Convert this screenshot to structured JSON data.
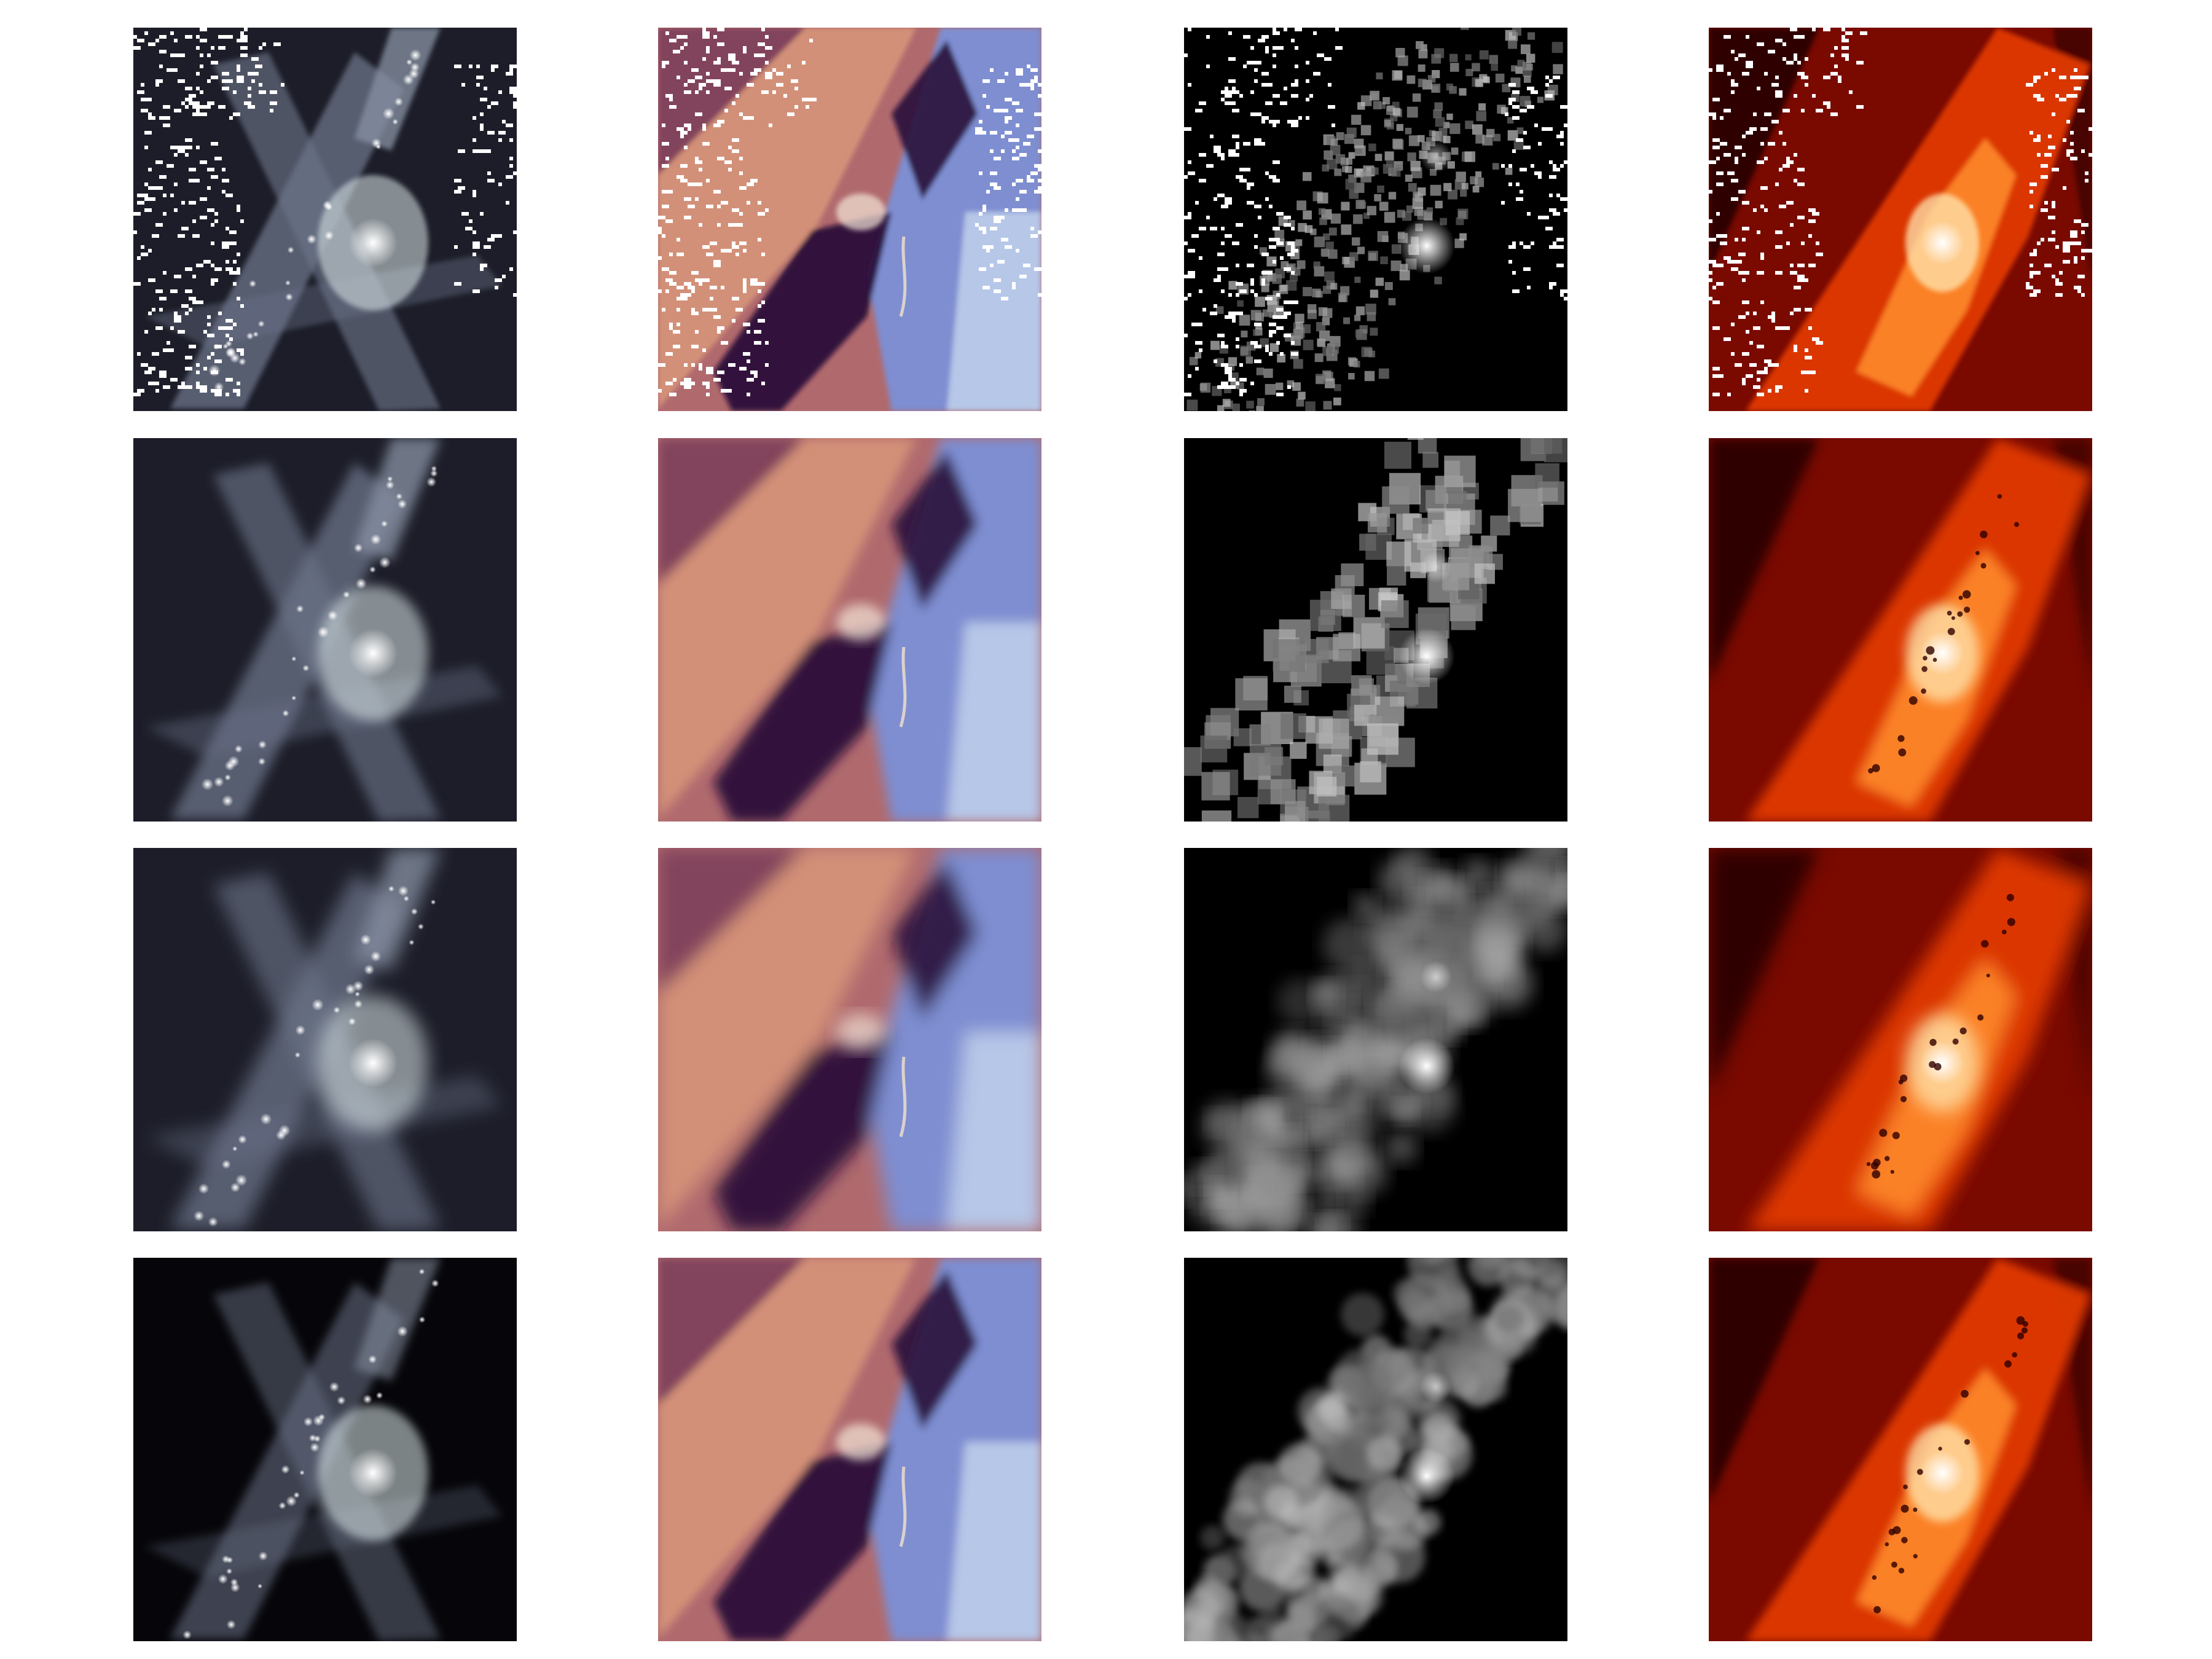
{
  "figure": {
    "title": "",
    "grid": {
      "rows": 4,
      "cols": 4,
      "axes_visible": false
    },
    "rows": [
      {
        "variant": "pixelated",
        "panels": [
          {
            "colormap": "bone",
            "subject": "x-shaped-filament-structure",
            "masked_pixels": true
          },
          {
            "colormap": "twilight-shifted",
            "subject": "diagonal-velocity-field",
            "masked_pixels": true
          },
          {
            "colormap": "gray",
            "subject": "diagonal-particle-band",
            "masked_pixels": true
          },
          {
            "colormap": "gist-heat",
            "subject": "diagonal-temperature-band",
            "masked_pixels": true
          }
        ]
      },
      {
        "variant": "blocky",
        "panels": [
          {
            "colormap": "bone",
            "subject": "x-shaped-filament-structure"
          },
          {
            "colormap": "twilight-shifted",
            "subject": "diagonal-velocity-field"
          },
          {
            "colormap": "gray",
            "subject": "diagonal-particle-band"
          },
          {
            "colormap": "gist-heat",
            "subject": "diagonal-temperature-band"
          }
        ]
      },
      {
        "variant": "smooth",
        "panels": [
          {
            "colormap": "bone",
            "subject": "x-shaped-filament-structure"
          },
          {
            "colormap": "twilight-shifted",
            "subject": "diagonal-velocity-field"
          },
          {
            "colormap": "gray",
            "subject": "diagonal-particle-band"
          },
          {
            "colormap": "gist-heat",
            "subject": "diagonal-temperature-band"
          }
        ]
      },
      {
        "variant": "sharp",
        "panels": [
          {
            "colormap": "bone",
            "subject": "x-shaped-filament-structure"
          },
          {
            "colormap": "twilight-shifted",
            "subject": "diagonal-velocity-field"
          },
          {
            "colormap": "gray",
            "subject": "diagonal-particle-band"
          },
          {
            "colormap": "gist-heat",
            "subject": "diagonal-temperature-band"
          }
        ]
      }
    ],
    "colors": {
      "background": "#ffffff",
      "bone_dark": "#1c1d28",
      "bone_mid": "#6b7388",
      "bone_light": "#dde9ea",
      "twilight_salmon": "#d9967a",
      "twilight_dark": "#2a0f3a",
      "twilight_blue": "#7b8fd6",
      "gray_dark": "#000000",
      "gray_light": "#e6e6e6",
      "heat_dark": "#2a0000",
      "heat_mid": "#e03a00",
      "heat_light": "#ffe6b0"
    }
  }
}
